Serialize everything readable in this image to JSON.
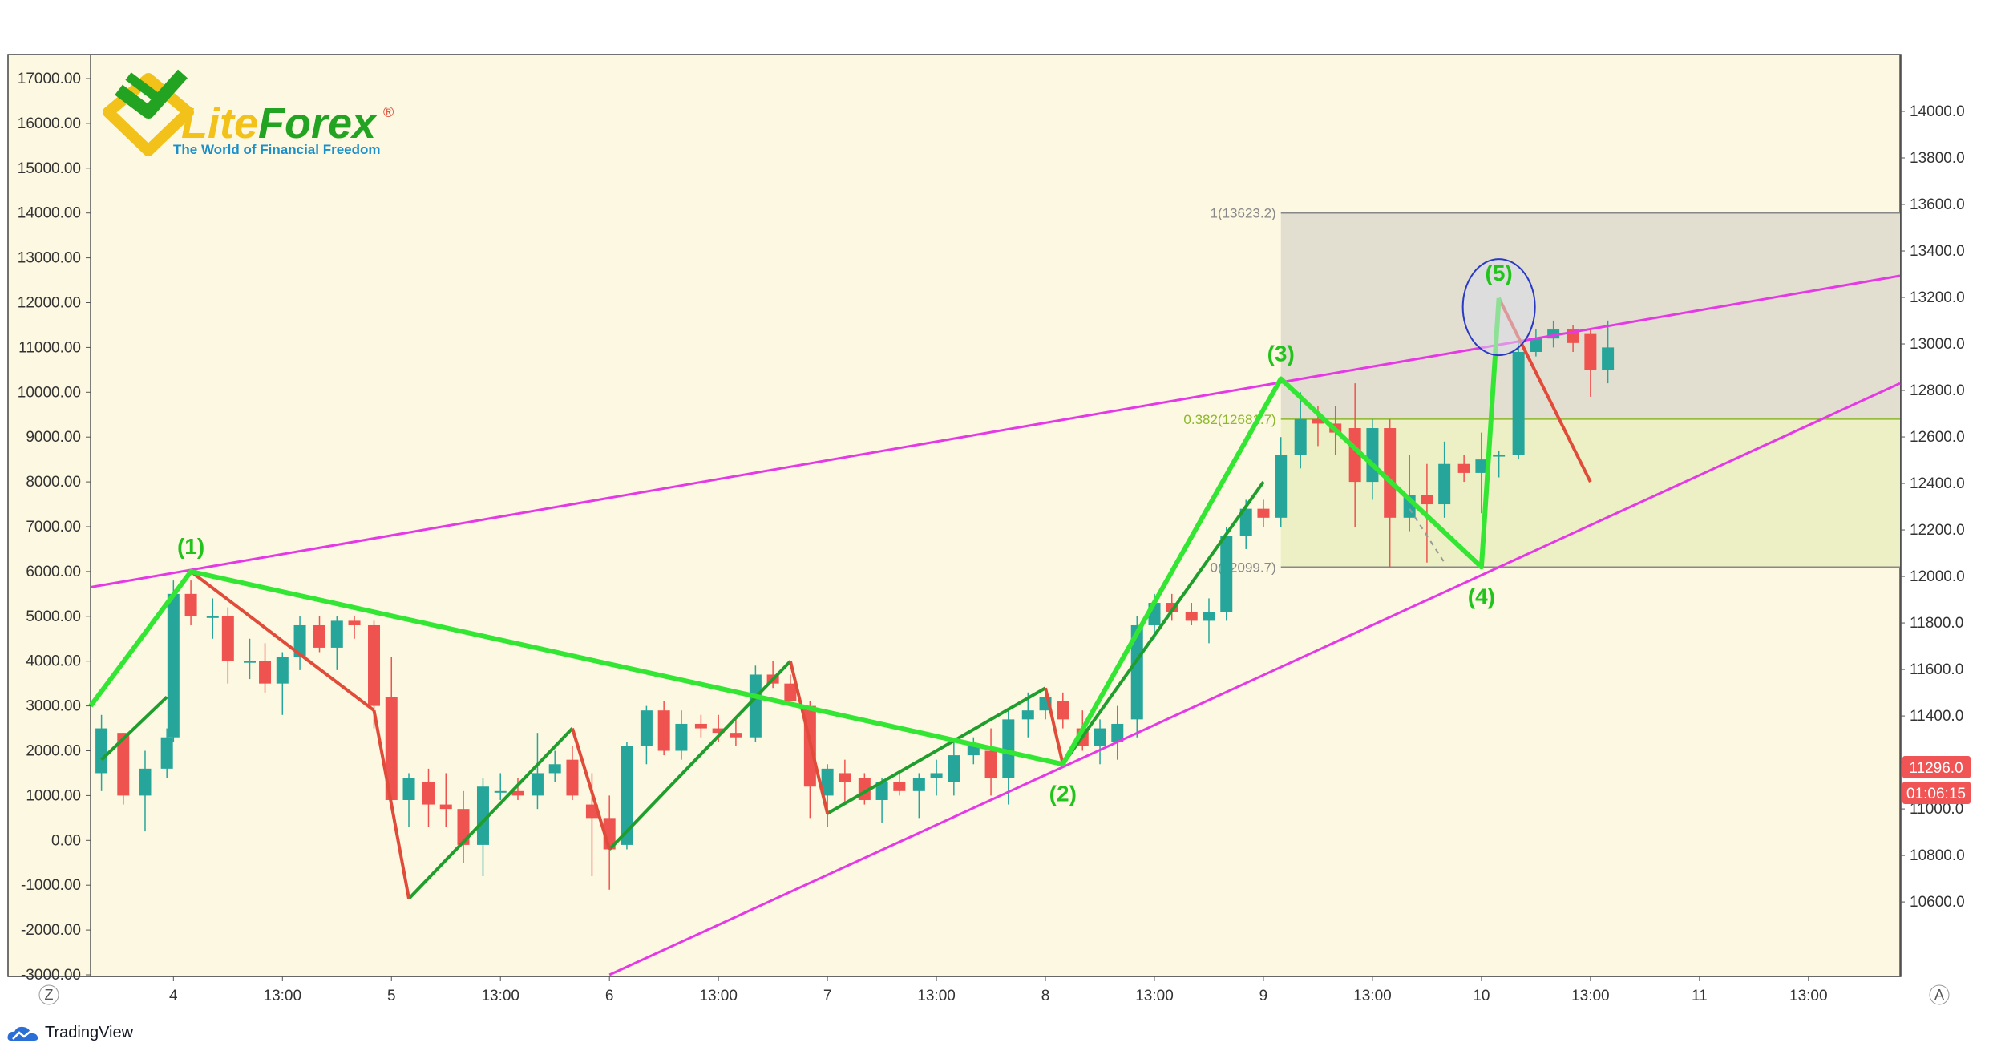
{
  "brand": {
    "logo_text_lite": "Lite",
    "logo_text_forex": "Forex",
    "logo_registered": "®",
    "tagline": "The World of Financial Freedom",
    "footer_text": "TradingView",
    "colors": {
      "green": "#22a322",
      "yellow": "#f2c21b",
      "blue": "#1a8fc9"
    }
  },
  "corner_buttons": {
    "left": "Z",
    "right": "A"
  },
  "price_tags": {
    "last_price": "11296.0",
    "countdown": "01:06:15",
    "color": "#f05454"
  },
  "chart_data": {
    "type": "candlestick",
    "background": "#fdf8e1",
    "up_color": "#26a69a",
    "down_color": "#ef5350",
    "left_axis": {
      "range": [
        -3000,
        17000
      ],
      "ticks": [
        "17000.00",
        "16000.00",
        "15000.00",
        "14000.00",
        "13000.00",
        "12000.00",
        "11000.00",
        "10000.00",
        "9000.00",
        "8000.00",
        "7000.00",
        "6000.00",
        "5000.00",
        "4000.00",
        "3000.00",
        "2000.00",
        "1000.00",
        "0.00",
        "-1000.00",
        "-2000.00",
        "-3000.00"
      ]
    },
    "right_axis": {
      "range": [
        10490,
        14100
      ],
      "ticks": [
        "14000.0",
        "13800.0",
        "13600.0",
        "13400.0",
        "13200.0",
        "13000.0",
        "12800.0",
        "12600.0",
        "12400.0",
        "12200.0",
        "12000.0",
        "11800.0",
        "11600.0",
        "11400.0",
        "11200.0",
        "11000.0",
        "10800.0",
        "10600.0"
      ]
    },
    "x_axis": {
      "range": [
        3.62,
        11.92
      ],
      "ticks": [
        {
          "x": 4.0,
          "label": "4"
        },
        {
          "x": 4.5,
          "label": "13:00"
        },
        {
          "x": 5.0,
          "label": "5"
        },
        {
          "x": 5.5,
          "label": "13:00"
        },
        {
          "x": 6.0,
          "label": "6"
        },
        {
          "x": 6.5,
          "label": "13:00"
        },
        {
          "x": 7.0,
          "label": "7"
        },
        {
          "x": 7.5,
          "label": "13:00"
        },
        {
          "x": 8.0,
          "label": "8"
        },
        {
          "x": 8.5,
          "label": "13:00"
        },
        {
          "x": 9.0,
          "label": "9"
        },
        {
          "x": 9.5,
          "label": "13:00"
        },
        {
          "x": 10.0,
          "label": "10"
        },
        {
          "x": 10.5,
          "label": "13:00"
        },
        {
          "x": 11.0,
          "label": "11"
        },
        {
          "x": 11.5,
          "label": "13:00"
        }
      ]
    },
    "candles": [
      {
        "x": 3.67,
        "o": 1500,
        "h": 2800,
        "l": 1100,
        "c": 2500
      },
      {
        "x": 3.77,
        "o": 2400,
        "h": 2400,
        "l": 800,
        "c": 1000
      },
      {
        "x": 3.87,
        "o": 1000,
        "h": 2000,
        "l": 200,
        "c": 1600
      },
      {
        "x": 3.97,
        "o": 1600,
        "h": 2500,
        "l": 1400,
        "c": 2300
      },
      {
        "x": 4.0,
        "o": 2300,
        "h": 5800,
        "l": 2200,
        "c": 5500
      },
      {
        "x": 4.08,
        "o": 5500,
        "h": 5800,
        "l": 4800,
        "c": 5000
      },
      {
        "x": 4.18,
        "o": 5000,
        "h": 5400,
        "l": 4500,
        "c": 5000
      },
      {
        "x": 4.25,
        "o": 5000,
        "h": 5200,
        "l": 3500,
        "c": 4000
      },
      {
        "x": 4.35,
        "o": 4000,
        "h": 4500,
        "l": 3600,
        "c": 4000
      },
      {
        "x": 4.42,
        "o": 4000,
        "h": 4400,
        "l": 3300,
        "c": 3500
      },
      {
        "x": 4.5,
        "o": 3500,
        "h": 4200,
        "l": 2800,
        "c": 4100
      },
      {
        "x": 4.58,
        "o": 4100,
        "h": 5000,
        "l": 3800,
        "c": 4800
      },
      {
        "x": 4.67,
        "o": 4800,
        "h": 5000,
        "l": 4200,
        "c": 4300
      },
      {
        "x": 4.75,
        "o": 4300,
        "h": 5000,
        "l": 3800,
        "c": 4900
      },
      {
        "x": 4.83,
        "o": 4900,
        "h": 5000,
        "l": 4500,
        "c": 4800
      },
      {
        "x": 4.92,
        "o": 4800,
        "h": 4900,
        "l": 2500,
        "c": 3000
      },
      {
        "x": 5.0,
        "o": 3200,
        "h": 4100,
        "l": 900,
        "c": 900
      },
      {
        "x": 5.08,
        "o": 900,
        "h": 1500,
        "l": 300,
        "c": 1400
      },
      {
        "x": 5.17,
        "o": 1300,
        "h": 1600,
        "l": 300,
        "c": 800
      },
      {
        "x": 5.25,
        "o": 800,
        "h": 1500,
        "l": 300,
        "c": 700
      },
      {
        "x": 5.33,
        "o": 700,
        "h": 1100,
        "l": -500,
        "c": -100
      },
      {
        "x": 5.42,
        "o": -100,
        "h": 1400,
        "l": -800,
        "c": 1200
      },
      {
        "x": 5.5,
        "o": 1100,
        "h": 1500,
        "l": 900,
        "c": 1100
      },
      {
        "x": 5.58,
        "o": 1100,
        "h": 1400,
        "l": 900,
        "c": 1000
      },
      {
        "x": 5.67,
        "o": 1000,
        "h": 2400,
        "l": 700,
        "c": 1500
      },
      {
        "x": 5.75,
        "o": 1500,
        "h": 2000,
        "l": 1300,
        "c": 1700
      },
      {
        "x": 5.83,
        "o": 1800,
        "h": 2100,
        "l": 900,
        "c": 1000
      },
      {
        "x": 5.92,
        "o": 800,
        "h": 1500,
        "l": -800,
        "c": 500
      },
      {
        "x": 6.0,
        "o": 500,
        "h": 1000,
        "l": -1100,
        "c": -200
      },
      {
        "x": 6.08,
        "o": -100,
        "h": 2200,
        "l": -200,
        "c": 2100
      },
      {
        "x": 6.17,
        "o": 2100,
        "h": 3000,
        "l": 1700,
        "c": 2900
      },
      {
        "x": 6.25,
        "o": 2900,
        "h": 3100,
        "l": 1900,
        "c": 2000
      },
      {
        "x": 6.33,
        "o": 2000,
        "h": 2900,
        "l": 1800,
        "c": 2600
      },
      {
        "x": 6.42,
        "o": 2600,
        "h": 2800,
        "l": 2300,
        "c": 2500
      },
      {
        "x": 6.5,
        "o": 2500,
        "h": 2800,
        "l": 2200,
        "c": 2400
      },
      {
        "x": 6.58,
        "o": 2400,
        "h": 2700,
        "l": 2100,
        "c": 2300
      },
      {
        "x": 6.67,
        "o": 2300,
        "h": 3900,
        "l": 2200,
        "c": 3700
      },
      {
        "x": 6.75,
        "o": 3700,
        "h": 4000,
        "l": 3400,
        "c": 3500
      },
      {
        "x": 6.83,
        "o": 3500,
        "h": 3700,
        "l": 3100,
        "c": 3100
      },
      {
        "x": 6.92,
        "o": 3000,
        "h": 3100,
        "l": 500,
        "c": 1200
      },
      {
        "x": 7.0,
        "o": 1000,
        "h": 1700,
        "l": 300,
        "c": 1600
      },
      {
        "x": 7.08,
        "o": 1500,
        "h": 1800,
        "l": 800,
        "c": 1300
      },
      {
        "x": 7.17,
        "o": 1400,
        "h": 1500,
        "l": 800,
        "c": 900
      },
      {
        "x": 7.25,
        "o": 900,
        "h": 1400,
        "l": 400,
        "c": 1300
      },
      {
        "x": 7.33,
        "o": 1300,
        "h": 1500,
        "l": 1000,
        "c": 1100
      },
      {
        "x": 7.42,
        "o": 1100,
        "h": 1500,
        "l": 500,
        "c": 1400
      },
      {
        "x": 7.5,
        "o": 1400,
        "h": 1800,
        "l": 1000,
        "c": 1500
      },
      {
        "x": 7.58,
        "o": 1300,
        "h": 2200,
        "l": 1000,
        "c": 1900
      },
      {
        "x": 7.67,
        "o": 1900,
        "h": 2300,
        "l": 1700,
        "c": 2100
      },
      {
        "x": 7.75,
        "o": 2000,
        "h": 2500,
        "l": 1000,
        "c": 1400
      },
      {
        "x": 7.83,
        "o": 1400,
        "h": 2900,
        "l": 800,
        "c": 2700
      },
      {
        "x": 7.92,
        "o": 2700,
        "h": 3300,
        "l": 2300,
        "c": 2900
      },
      {
        "x": 8.0,
        "o": 2900,
        "h": 3400,
        "l": 2700,
        "c": 3200
      },
      {
        "x": 8.08,
        "o": 3100,
        "h": 3300,
        "l": 2500,
        "c": 2700
      },
      {
        "x": 8.17,
        "o": 2500,
        "h": 2900,
        "l": 2000,
        "c": 2100
      },
      {
        "x": 8.25,
        "o": 2100,
        "h": 2700,
        "l": 1700,
        "c": 2500
      },
      {
        "x": 8.33,
        "o": 2200,
        "h": 3000,
        "l": 1800,
        "c": 2600
      },
      {
        "x": 8.42,
        "o": 2700,
        "h": 5000,
        "l": 2300,
        "c": 4800
      },
      {
        "x": 8.5,
        "o": 4800,
        "h": 5500,
        "l": 4500,
        "c": 5300
      },
      {
        "x": 8.58,
        "o": 5300,
        "h": 5500,
        "l": 4900,
        "c": 5100
      },
      {
        "x": 8.67,
        "o": 5100,
        "h": 5300,
        "l": 4800,
        "c": 4900
      },
      {
        "x": 8.75,
        "o": 4900,
        "h": 5400,
        "l": 4400,
        "c": 5100
      },
      {
        "x": 8.83,
        "o": 5100,
        "h": 7000,
        "l": 4900,
        "c": 6800
      },
      {
        "x": 8.92,
        "o": 6800,
        "h": 7600,
        "l": 6500,
        "c": 7400
      },
      {
        "x": 9.0,
        "o": 7400,
        "h": 7600,
        "l": 7000,
        "c": 7200
      },
      {
        "x": 9.08,
        "o": 7200,
        "h": 9000,
        "l": 7000,
        "c": 8600
      },
      {
        "x": 9.17,
        "o": 8600,
        "h": 10000,
        "l": 8300,
        "c": 9400
      },
      {
        "x": 9.25,
        "o": 9400,
        "h": 9700,
        "l": 8800,
        "c": 9300
      },
      {
        "x": 9.33,
        "o": 9300,
        "h": 9700,
        "l": 8600,
        "c": 9100
      },
      {
        "x": 9.42,
        "o": 9200,
        "h": 10200,
        "l": 7000,
        "c": 8000
      },
      {
        "x": 9.5,
        "o": 8000,
        "h": 9400,
        "l": 7600,
        "c": 9200
      },
      {
        "x": 9.58,
        "o": 9200,
        "h": 9400,
        "l": 6100,
        "c": 7200
      },
      {
        "x": 9.67,
        "o": 7200,
        "h": 8600,
        "l": 6900,
        "c": 7700
      },
      {
        "x": 9.75,
        "o": 7700,
        "h": 8400,
        "l": 6200,
        "c": 7500
      },
      {
        "x": 9.83,
        "o": 7500,
        "h": 8900,
        "l": 7200,
        "c": 8400
      },
      {
        "x": 9.92,
        "o": 8400,
        "h": 8600,
        "l": 8000,
        "c": 8200
      },
      {
        "x": 10.0,
        "o": 8200,
        "h": 9100,
        "l": 7300,
        "c": 8500
      },
      {
        "x": 10.08,
        "o": 8600,
        "h": 8700,
        "l": 8100,
        "c": 8600
      },
      {
        "x": 10.17,
        "o": 8600,
        "h": 11200,
        "l": 8500,
        "c": 10900
      },
      {
        "x": 10.25,
        "o": 10900,
        "h": 11400,
        "l": 10800,
        "c": 11200
      },
      {
        "x": 10.33,
        "o": 11200,
        "h": 11600,
        "l": 11000,
        "c": 11400
      },
      {
        "x": 10.42,
        "o": 11400,
        "h": 11500,
        "l": 10900,
        "c": 11100
      },
      {
        "x": 10.5,
        "o": 11300,
        "h": 11400,
        "l": 9900,
        "c": 10500
      },
      {
        "x": 10.58,
        "o": 10500,
        "h": 11600,
        "l": 10200,
        "c": 11000
      }
    ],
    "lines": {
      "upper_channel": {
        "color": "#e639e6",
        "points": [
          [
            3.62,
            5650
          ],
          [
            11.92,
            12600
          ]
        ]
      },
      "lower_channel": {
        "color": "#e639e6",
        "points": [
          [
            6.0,
            -3000
          ],
          [
            11.92,
            10200
          ]
        ]
      },
      "wave_main": {
        "color": "#33e633",
        "points": [
          [
            3.62,
            3000
          ],
          [
            4.08,
            6000
          ],
          [
            8.08,
            1700
          ],
          [
            9.08,
            10300
          ],
          [
            10.0,
            6100
          ],
          [
            10.08,
            12100
          ]
        ]
      },
      "wave_sub_up": {
        "color": "#1f9e2d",
        "segments": [
          [
            [
              3.67,
              1800
            ],
            [
              3.97,
              3200
            ]
          ],
          [
            [
              5.08,
              -1300
            ],
            [
              5.83,
              2500
            ]
          ],
          [
            [
              6.0,
              -200
            ],
            [
              6.83,
              4000
            ]
          ],
          [
            [
              7.0,
              600
            ],
            [
              8.0,
              3400
            ]
          ],
          [
            [
              8.08,
              1700
            ],
            [
              9.0,
              8000
            ]
          ]
        ]
      },
      "wave_sub_down": {
        "color": "#e04b3a",
        "segments": [
          [
            [
              4.08,
              6000
            ],
            [
              4.92,
              2900
            ]
          ],
          [
            [
              4.92,
              2900
            ],
            [
              5.08,
              -1300
            ]
          ],
          [
            [
              5.83,
              2500
            ],
            [
              6.0,
              -200
            ]
          ],
          [
            [
              6.83,
              4000
            ],
            [
              7.0,
              600
            ]
          ],
          [
            [
              8.0,
              3400
            ],
            [
              8.08,
              1700
            ]
          ],
          [
            [
              10.08,
              12100
            ],
            [
              10.5,
              8000
            ]
          ]
        ]
      },
      "dashed_projection": {
        "color": "#999999",
        "points": [
          [
            9.67,
            7400
          ],
          [
            9.83,
            6200
          ]
        ]
      }
    },
    "wave_labels": [
      {
        "label": "(1)",
        "x": 4.08,
        "y": 6000,
        "pos": "above"
      },
      {
        "label": "(2)",
        "x": 8.08,
        "y": 1700,
        "pos": "below"
      },
      {
        "label": "(3)",
        "x": 9.08,
        "y": 10300,
        "pos": "above"
      },
      {
        "label": "(4)",
        "x": 10.0,
        "y": 6100,
        "pos": "below"
      },
      {
        "label": "(5)",
        "x": 10.08,
        "y": 12100,
        "pos": "above"
      }
    ],
    "highlight_ellipse": {
      "x": 10.08,
      "y": 11900,
      "color": "#2a3ac4",
      "fill": "#d8dae8"
    },
    "fib_retracement": {
      "x_start": 9.08,
      "zones": [
        {
          "from": 9400,
          "to": 14000,
          "color": "#e2dfd0"
        },
        {
          "from": 6100,
          "to": 9400,
          "color": "#ecf0c4"
        }
      ],
      "levels": [
        {
          "label": "1(13623.2)",
          "value": 14000,
          "color": "#888888"
        },
        {
          "label": "0.382(12681.7)",
          "value": 9400,
          "color": "#8cb82c"
        },
        {
          "label": "0(12099.7)",
          "value": 6100,
          "color": "#888888"
        }
      ]
    }
  }
}
